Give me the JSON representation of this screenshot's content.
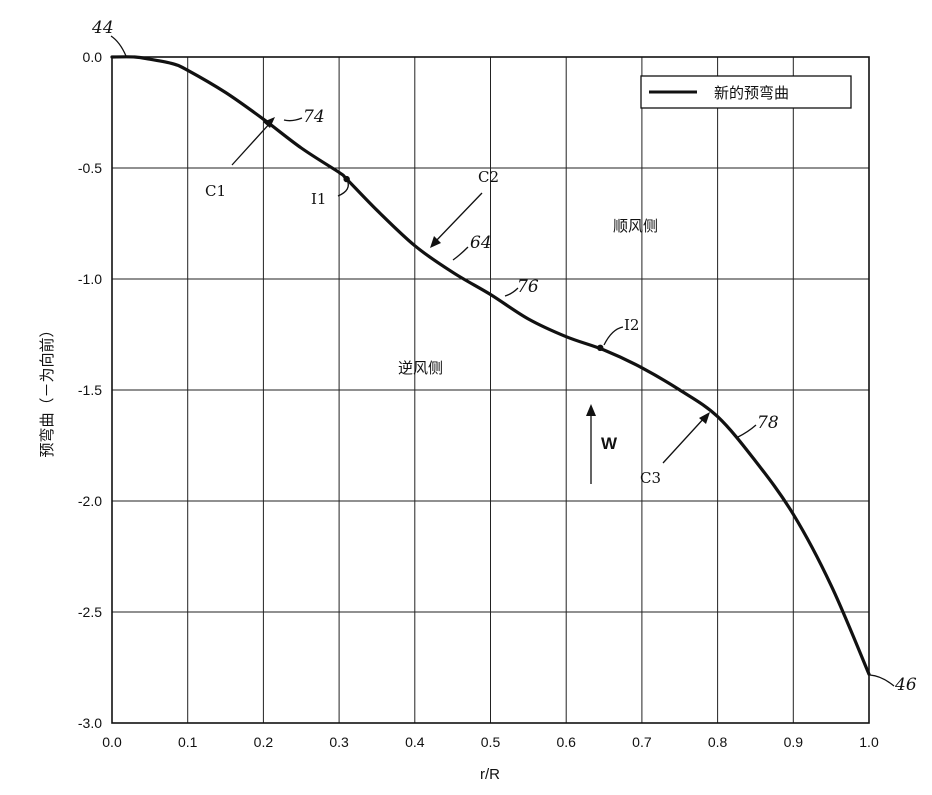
{
  "chart_data": {
    "type": "line",
    "xlabel": "r/R",
    "ylabel": "预弯曲（－为向前）",
    "xlim": [
      0.0,
      1.0
    ],
    "ylim": [
      -3.0,
      0.0
    ],
    "x_ticks": [
      "0.0",
      "0.1",
      "0.2",
      "0.3",
      "0.4",
      "0.5",
      "0.6",
      "0.7",
      "0.8",
      "0.9",
      "1.0"
    ],
    "y_ticks": [
      "0.0",
      "-0.5",
      "-1.0",
      "-1.5",
      "-2.0",
      "-2.5",
      "-3.0"
    ],
    "grid": true,
    "legend": {
      "position": "top-right",
      "entries": [
        "新的预弯曲"
      ]
    },
    "series": [
      {
        "name": "新的预弯曲",
        "color": "#111111",
        "x": [
          0.0,
          0.03,
          0.05,
          0.08,
          0.1,
          0.15,
          0.2,
          0.25,
          0.3,
          0.31,
          0.35,
          0.4,
          0.45,
          0.5,
          0.55,
          0.6,
          0.65,
          0.7,
          0.75,
          0.8,
          0.85,
          0.9,
          0.95,
          1.0
        ],
        "y": [
          0.0,
          0.0,
          -0.01,
          -0.03,
          -0.06,
          -0.16,
          -0.28,
          -0.41,
          -0.52,
          -0.55,
          -0.69,
          -0.85,
          -0.97,
          -1.07,
          -1.18,
          -1.26,
          -1.32,
          -1.4,
          -1.5,
          -1.62,
          -1.82,
          -2.06,
          -2.38,
          -2.78
        ]
      }
    ],
    "annotations": {
      "point_start": "44",
      "point_end": "46",
      "ref_74": "74",
      "ref_64": "64",
      "ref_76": "76",
      "ref_78": "78",
      "c1": "C1",
      "c2": "C2",
      "c3": "C3",
      "i1": "I1",
      "i2": "I2",
      "downwind_side": "顺风侧",
      "upwind_side": "逆风侧",
      "wind": "W"
    }
  }
}
